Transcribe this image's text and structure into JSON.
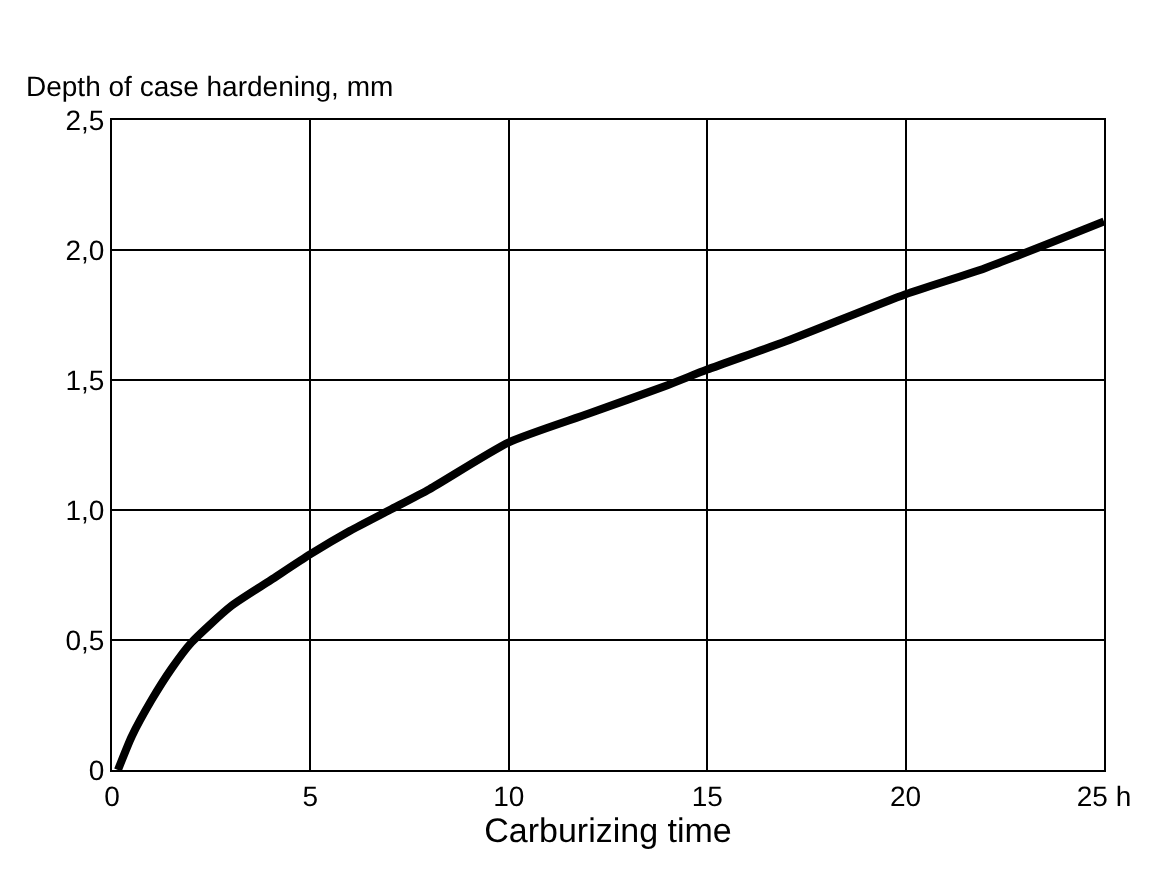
{
  "chart_data": {
    "type": "line",
    "ylabel": "Depth of case hardening, mm",
    "xlabel": "Carburizing time",
    "x": [
      0.15,
      0.5,
      1,
      1.5,
      2,
      3,
      4,
      5,
      6,
      7,
      8,
      10,
      12,
      14,
      15,
      17,
      20,
      22,
      25
    ],
    "series": [
      {
        "color": "#000000",
        "values": [
          0,
          0.13,
          0.27,
          0.39,
          0.49,
          0.63,
          0.73,
          0.83,
          0.92,
          1.0,
          1.08,
          1.26,
          1.37,
          1.48,
          1.54,
          1.65,
          1.83,
          1.93,
          2.11
        ]
      }
    ],
    "xlim": [
      0,
      25
    ],
    "xticks": [
      0,
      5,
      10,
      15,
      20,
      {
        "value": 25,
        "label": "25 h"
      }
    ],
    "ylim": [
      0,
      2.5
    ],
    "yticks": [
      0,
      {
        "value": 0.5,
        "label": "0,5"
      },
      {
        "value": 1,
        "label": "1,0"
      },
      {
        "value": 1.5,
        "label": "1,5"
      },
      {
        "value": 2,
        "label": "2,0"
      },
      {
        "value": 2.5,
        "label": "2,5"
      }
    ],
    "grid": true,
    "marker": "none",
    "line_style": "solid"
  }
}
